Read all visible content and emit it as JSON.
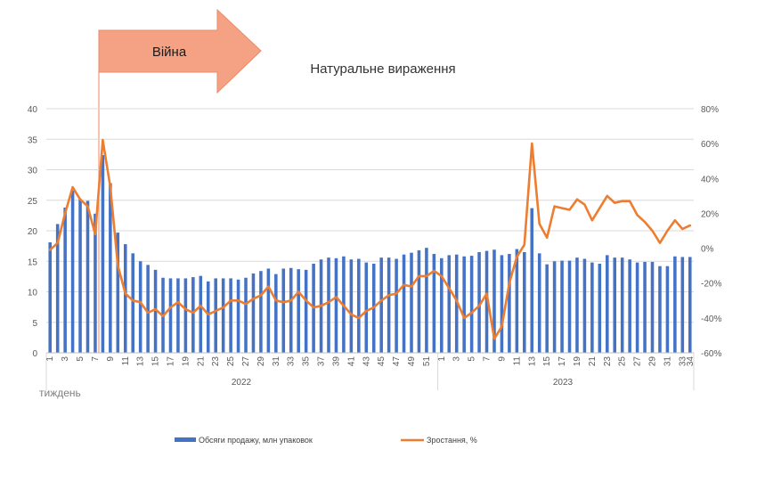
{
  "chart_data": {
    "type": "bar+line",
    "title": "Натуральне вираження",
    "annotation": "Війна",
    "xlabel": "тиждень",
    "years": [
      "2022",
      "2023"
    ],
    "x_weeks": [
      1,
      2,
      3,
      4,
      5,
      6,
      7,
      8,
      9,
      10,
      11,
      12,
      13,
      14,
      15,
      16,
      17,
      18,
      19,
      20,
      21,
      22,
      23,
      24,
      25,
      26,
      27,
      28,
      29,
      30,
      31,
      32,
      33,
      34,
      35,
      36,
      37,
      38,
      39,
      40,
      41,
      42,
      43,
      44,
      45,
      46,
      47,
      48,
      49,
      50,
      51,
      52,
      1,
      2,
      3,
      4,
      5,
      6,
      7,
      8,
      9,
      10,
      11,
      12,
      13,
      14,
      15,
      16,
      17,
      18,
      19,
      20,
      21,
      22,
      23,
      24,
      25,
      26,
      27,
      28,
      29,
      30,
      31,
      32,
      33,
      34
    ],
    "x_tick_labels": [
      "1",
      "3",
      "5",
      "7",
      "9",
      "11",
      "13",
      "15",
      "17",
      "19",
      "21",
      "23",
      "25",
      "27",
      "29",
      "31",
      "33",
      "35",
      "37",
      "39",
      "41",
      "43",
      "45",
      "47",
      "49",
      "51",
      "1",
      "3",
      "5",
      "7",
      "9",
      "11",
      "13",
      "15",
      "17",
      "19",
      "21",
      "23",
      "25",
      "27",
      "29",
      "31",
      "33",
      "34"
    ],
    "y_left": {
      "ylim": [
        0,
        40
      ],
      "ticks": [
        "0",
        "5",
        "10",
        "15",
        "20",
        "25",
        "30",
        "35",
        "40"
      ]
    },
    "y_right": {
      "ylim": [
        -60,
        80
      ],
      "ticks": [
        "-60%",
        "-40%",
        "-20%",
        "0%",
        "20%",
        "40%",
        "60%",
        "80%"
      ]
    },
    "series": [
      {
        "name": "Обсяги продажу, млн упаковок",
        "type": "bar",
        "axis": "left",
        "color": "#4472c4",
        "values": [
          18.1,
          21.1,
          23.8,
          26.6,
          25.2,
          24.9,
          22.8,
          32.4,
          27.8,
          19.7,
          17.8,
          16.3,
          15.0,
          14.4,
          13.6,
          12.3,
          12.2,
          12.2,
          12.2,
          12.4,
          12.6,
          11.7,
          12.2,
          12.2,
          12.2,
          12.0,
          12.3,
          13.0,
          13.4,
          13.8,
          12.9,
          13.8,
          13.9,
          13.7,
          13.6,
          14.6,
          15.3,
          15.6,
          15.5,
          15.8,
          15.3,
          15.4,
          14.8,
          14.6,
          15.6,
          15.6,
          15.4,
          16.1,
          16.4,
          16.8,
          17.2,
          16.2,
          15.5,
          16.0,
          16.1,
          15.8,
          15.9,
          16.5,
          16.7,
          16.9,
          16.0,
          16.2,
          17.0,
          16.5,
          23.7,
          16.3,
          14.5,
          15.0,
          15.1,
          15.1,
          15.6,
          15.4,
          14.8,
          14.6,
          16.0,
          15.6,
          15.6,
          15.3,
          14.8,
          14.9,
          14.9,
          14.2,
          14.2,
          15.8,
          15.7,
          15.7
        ]
      },
      {
        "name": "Зростання, %",
        "type": "line",
        "axis": "right",
        "color": "#ed7d31",
        "values": [
          -1,
          3,
          20,
          35,
          28,
          24,
          8,
          62,
          35,
          -10,
          -26,
          -30,
          -31,
          -37,
          -35,
          -39,
          -34,
          -31,
          -35,
          -37,
          -33,
          -38,
          -36,
          -34,
          -30,
          -30,
          -32,
          -29,
          -27,
          -22,
          -30,
          -31,
          -30,
          -25,
          -30,
          -34,
          -33,
          -31,
          -28,
          -33,
          -38,
          -40,
          -36,
          -34,
          -30,
          -27,
          -26,
          -21,
          -22,
          -16,
          -16,
          -13,
          -16,
          -23,
          -30,
          -40,
          -37,
          -33,
          -26,
          -52,
          -45,
          -20,
          -5,
          2,
          60,
          14,
          6,
          24,
          23,
          22,
          28,
          25,
          16,
          23,
          30,
          26,
          27,
          27,
          19,
          15,
          10,
          3,
          10,
          16,
          11,
          13
        ]
      }
    ],
    "legend": [
      {
        "label": "Обсяги продажу, млн упаковок",
        "marker": "bar",
        "color": "#4472c4"
      },
      {
        "label": "Зростання, %",
        "marker": "line",
        "color": "#ed7d31"
      }
    ],
    "legend_position": "bottom",
    "grid": true
  }
}
